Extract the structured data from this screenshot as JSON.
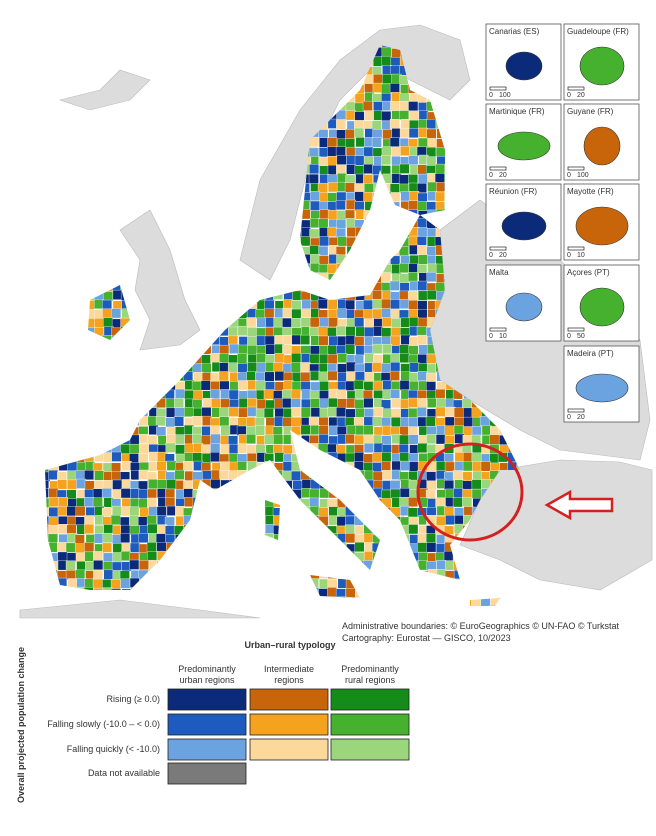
{
  "insets": [
    {
      "label": "Canarias (ES)",
      "scale": [
        0,
        100
      ]
    },
    {
      "label": "Guadeloupe (FR)",
      "scale": [
        0,
        20
      ]
    },
    {
      "label": "Martinique (FR)",
      "scale": [
        0,
        20
      ]
    },
    {
      "label": "Guyane (FR)",
      "scale": [
        0,
        100
      ]
    },
    {
      "label": "Réunion (FR)",
      "scale": [
        0,
        20
      ]
    },
    {
      "label": "Mayotte (FR)",
      "scale": [
        0,
        10
      ]
    },
    {
      "label": "Malta",
      "scale": [
        0,
        10
      ]
    },
    {
      "label": "Açores (PT)",
      "scale": [
        0,
        50
      ]
    },
    {
      "label": "Madeira (PT)",
      "scale": [
        0,
        20
      ]
    }
  ],
  "attribution": [
    "Administrative boundaries: © EuroGeographics © UN-FAO © Turkstat",
    "Cartography: Eurostat — GISCO, 10/2023"
  ],
  "legend": {
    "title": "Urban–rural typology",
    "row_axis": "Overall projected population change",
    "columns": [
      "Predominantly urban regions",
      "Intermediate regions",
      "Predominantly rural regions"
    ],
    "rows": [
      "Rising (≥ 0.0)",
      "Falling slowly (-10.0 – < 0.0)",
      "Falling quickly (< -10.0)",
      "Data not available"
    ],
    "colors": [
      [
        "#0b2a7a",
        "#c8650a",
        "#158c1a"
      ],
      [
        "#1e5bbf",
        "#f5a31e",
        "#46b12e"
      ],
      [
        "#6aa3e0",
        "#fcd89a",
        "#9bd67c"
      ],
      [
        "#7a7a7a"
      ]
    ]
  }
}
